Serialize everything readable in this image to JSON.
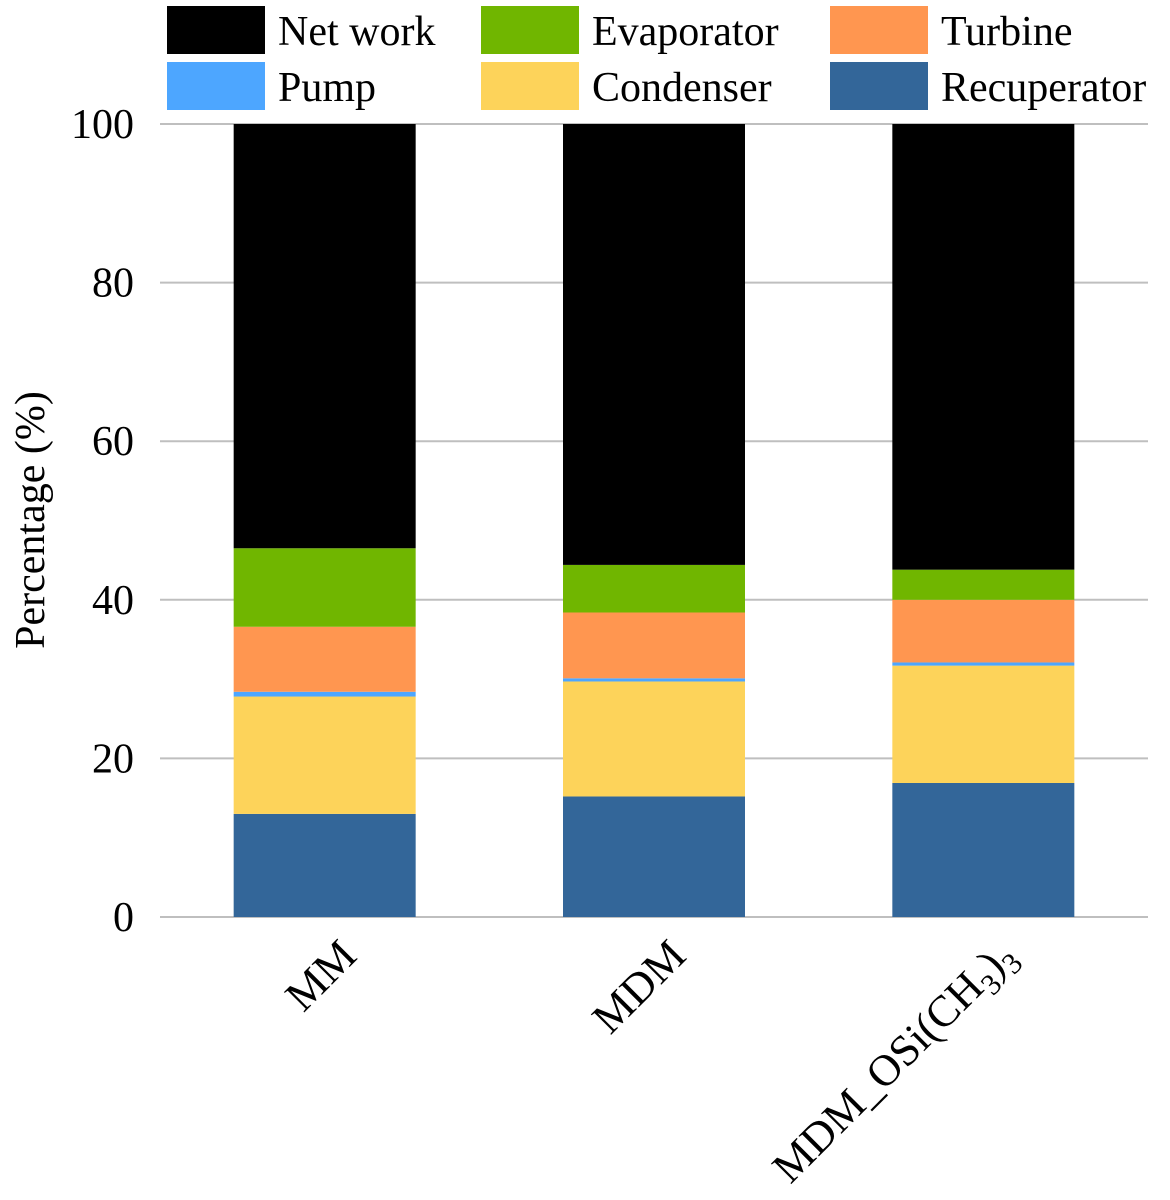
{
  "chart_data": {
    "type": "bar",
    "stacked": true,
    "title": "",
    "xlabel": "",
    "ylabel": "Percentage (%)",
    "ylim": [
      0,
      100
    ],
    "yticks": [
      "0",
      "20",
      "40",
      "60",
      "80",
      "100"
    ],
    "grid": true,
    "legend_position": "top",
    "categories": [
      "MM",
      "MDM",
      "MDM_OSi(CH3)3"
    ],
    "category_label_parts": [
      [
        {
          "text": "MM",
          "sub": false
        }
      ],
      [
        {
          "text": "MDM",
          "sub": false
        }
      ],
      [
        {
          "text": "MDM_OSi(CH",
          "sub": false
        },
        {
          "text": "3",
          "sub": true
        },
        {
          "text": ")",
          "sub": false
        },
        {
          "text": "3",
          "sub": true
        }
      ]
    ],
    "legend_order": [
      "Net work",
      "Evaporator",
      "Turbine",
      "Pump",
      "Condenser",
      "Recuperator"
    ],
    "series": [
      {
        "name": "Recuperator",
        "color": "#336699",
        "values": [
          13.0,
          15.2,
          16.9
        ]
      },
      {
        "name": "Condenser",
        "color": "#FDD35A",
        "values": [
          14.8,
          14.5,
          14.8
        ]
      },
      {
        "name": "Pump",
        "color": "#4DA6FF",
        "values": [
          0.6,
          0.4,
          0.4
        ]
      },
      {
        "name": "Turbine",
        "color": "#FF9650",
        "values": [
          8.2,
          8.3,
          7.9
        ]
      },
      {
        "name": "Evaporator",
        "color": "#70B600",
        "values": [
          9.9,
          6.0,
          3.8
        ]
      },
      {
        "name": "Net work",
        "color": "#000000",
        "values": [
          53.5,
          55.6,
          56.2
        ]
      }
    ]
  }
}
